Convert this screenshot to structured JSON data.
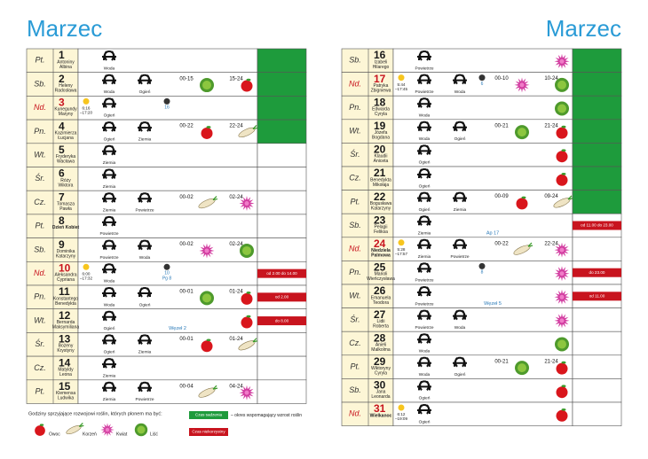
{
  "pages": [
    {
      "title": "Marzec",
      "rows": [
        {
          "dow": "Pt.",
          "day": 1,
          "names": [
            "Antoniny",
            "Albina"
          ],
          "signs": [
            "Woda"
          ],
          "cell": "#1e9b3c"
        },
        {
          "dow": "Sb.",
          "day": 2,
          "names": [
            "Heleny",
            "Radosława"
          ],
          "signs": [
            "Woda",
            "Ogień"
          ],
          "times": [
            "00-15",
            "15-24"
          ],
          "plants": [
            "lisc",
            "owoc"
          ],
          "cell": "#1e9b3c"
        },
        {
          "dow": "Nd.",
          "day": 3,
          "day_color": "#c8141e",
          "names": [
            "Kunegundy",
            "Maryny"
          ],
          "sun": [
            "6:16",
            "–17:20"
          ],
          "signs": [
            "Ogień"
          ],
          "moon": "16",
          "cell": "#1e9b3c"
        },
        {
          "dow": "Pn.",
          "day": 4,
          "names": [
            "Kazimierza",
            "Łucjana"
          ],
          "signs": [
            "Ogień",
            "Ziemia"
          ],
          "times": [
            "00-22",
            "22-24"
          ],
          "plants": [
            "owoc",
            "korzen"
          ],
          "cell": "#1e9b3c"
        },
        {
          "dow": "Wt.",
          "day": 5,
          "names": [
            "Fryderyka",
            "Wacława"
          ],
          "signs": [
            "Ziemia"
          ]
        },
        {
          "dow": "Śr.",
          "day": 6,
          "names": [
            "Róży",
            "Wiktora"
          ],
          "signs": [
            "Ziemia"
          ]
        },
        {
          "dow": "Cz.",
          "day": 7,
          "names": [
            "Tomasza",
            "Pawła"
          ],
          "signs": [
            "Ziemia",
            "Powietrze"
          ],
          "times": [
            "00-02",
            "02-24"
          ],
          "plants": [
            "korzen",
            "kwiat"
          ]
        },
        {
          "dow": "Pt.",
          "day": 8,
          "names": [
            "Dzień Kobiet"
          ],
          "bold_names": true,
          "signs": [
            "Powietrze"
          ]
        },
        {
          "dow": "Sb.",
          "day": 9,
          "names": [
            "Dominika",
            "Katarzyny"
          ],
          "signs": [
            "Powietrze",
            "Woda"
          ],
          "times": [
            "00-02",
            "02-24"
          ],
          "plants": [
            "kwiat",
            "lisc"
          ]
        },
        {
          "dow": "Nd.",
          "day": 10,
          "day_color": "#c8141e",
          "names": [
            "Aleksandra",
            "Cypriana"
          ],
          "sun": [
            "6:00",
            "–17:32"
          ],
          "signs": [
            "Woda"
          ],
          "moon": "10",
          "moon_extra": "Pg 8",
          "alert": "od 2.00 do 14.00"
        },
        {
          "dow": "Pn.",
          "day": 11,
          "names": [
            "Konstantego",
            "Benedykta"
          ],
          "signs": [
            "Woda",
            "Ogień"
          ],
          "times": [
            "00-01",
            "01-24"
          ],
          "plants": [
            "lisc",
            "owoc"
          ],
          "alert": "od 2.00"
        },
        {
          "dow": "Wt.",
          "day": 12,
          "names": [
            "Bernarda",
            "Maksymiliana"
          ],
          "signs": [
            "Ogień"
          ],
          "note": "Węzeł 2",
          "plants": [
            "owoc"
          ],
          "alert": "do 8.00"
        },
        {
          "dow": "Śr.",
          "day": 13,
          "names": [
            "Bożeny",
            "Krystyny"
          ],
          "signs": [
            "Ogień",
            "Ziemia"
          ],
          "times": [
            "00-01",
            "01-24"
          ],
          "plants": [
            "owoc",
            "korzen"
          ]
        },
        {
          "dow": "Cz.",
          "day": 14,
          "names": [
            "Matyldy",
            "Leona"
          ],
          "signs": [
            "Ziemia"
          ]
        },
        {
          "dow": "Pt.",
          "day": 15,
          "names": [
            "Klemensa",
            "Ludwika"
          ],
          "signs": [
            "Ziemia",
            "Powietrze"
          ],
          "times": [
            "00-04",
            "04-24"
          ],
          "plants": [
            "korzen",
            "kwiat"
          ]
        }
      ]
    },
    {
      "title": "Marzec",
      "rows": [
        {
          "dow": "Sb.",
          "day": 16,
          "names": [
            "Izabeli",
            "Hilarego"
          ],
          "signs": [
            "Powietrze"
          ],
          "plants": [
            "kwiat"
          ],
          "cell": "#1e9b3c"
        },
        {
          "dow": "Nd.",
          "day": 17,
          "day_color": "#c8141e",
          "names": [
            "Patryka",
            "Zbigniewa"
          ],
          "sun": [
            "5:44",
            "–17:45"
          ],
          "signs": [
            "Powietrze",
            "Woda"
          ],
          "moon": "6",
          "times": [
            "00-10",
            "10-24"
          ],
          "plants": [
            "kwiat",
            "lisc"
          ],
          "cell": "#1e9b3c"
        },
        {
          "dow": "Pn.",
          "day": 18,
          "names": [
            "Edwarda",
            "Cyryla"
          ],
          "signs": [
            "Woda"
          ],
          "plants": [
            "lisc"
          ],
          "cell": "#1e9b3c"
        },
        {
          "dow": "Wt.",
          "day": 19,
          "names": [
            "Józefa",
            "Bogdana"
          ],
          "signs": [
            "Woda",
            "Ogień"
          ],
          "times": [
            "00-21",
            "21-24"
          ],
          "plants": [
            "lisc",
            "owoc"
          ],
          "cell": "#1e9b3c"
        },
        {
          "dow": "Śr.",
          "day": 20,
          "names": [
            "Klaudii",
            "Aniceta"
          ],
          "signs": [
            "Ogień"
          ],
          "plants": [
            "owoc"
          ],
          "cell": "#1e9b3c"
        },
        {
          "dow": "Cz.",
          "day": 21,
          "names": [
            "Benedykta",
            "Mikołaja"
          ],
          "signs": [
            "Ogień"
          ],
          "plants": [
            "owoc"
          ],
          "cell": "#1e9b3c"
        },
        {
          "dow": "Pt.",
          "day": 22,
          "names": [
            "Bogusława",
            "Katarzyny"
          ],
          "signs": [
            "Ogień",
            "Ziemia"
          ],
          "times": [
            "00-09",
            "09-24"
          ],
          "plants": [
            "owoc",
            "korzen"
          ],
          "cell": "#1e9b3c"
        },
        {
          "dow": "Sb.",
          "day": 23,
          "names": [
            "Pelagii",
            "Feliksa"
          ],
          "signs": [
            "Ziemia"
          ],
          "note": "Ap 17",
          "alert": "od 11.00 do 23.00"
        },
        {
          "dow": "Nd.",
          "day": 24,
          "day_color": "#c8141e",
          "names": [
            "Niedziela",
            "Palmowa"
          ],
          "bold_names": true,
          "sun": [
            "5:28",
            "–17:57"
          ],
          "signs": [
            "Ziemia",
            "Powietrze"
          ],
          "times": [
            "00-22",
            "22-24"
          ],
          "plants": [
            "korzen",
            "kwiat"
          ]
        },
        {
          "dow": "Pn.",
          "day": 25,
          "names": [
            "Marioli",
            "Wieńczysława"
          ],
          "signs": [
            "Powietrze"
          ],
          "moon": "8",
          "plants": [
            "kwiat"
          ],
          "alert": "do 23.00"
        },
        {
          "dow": "Wt.",
          "day": 26,
          "names": [
            "Emanuela",
            "Teodora"
          ],
          "signs": [
            "Powietrze"
          ],
          "note": "Węzeł 5",
          "plants": [
            "kwiat"
          ],
          "alert": "od 11.00"
        },
        {
          "dow": "Śr.",
          "day": 27,
          "names": [
            "Lidii",
            "Roberta"
          ],
          "signs": [
            "Powietrze",
            "Woda"
          ],
          "plants": [
            "kwiat"
          ]
        },
        {
          "dow": "Cz.",
          "day": 28,
          "names": [
            "Anieli",
            "Malkolma"
          ],
          "signs": [
            "Woda"
          ],
          "plants": [
            "lisc"
          ]
        },
        {
          "dow": "Pt.",
          "day": 29,
          "names": [
            "Wiktoryny",
            "Cyryla"
          ],
          "signs": [
            "Woda",
            "Ogień"
          ],
          "times": [
            "00-21",
            "21-24"
          ],
          "plants": [
            "lisc",
            "owoc"
          ]
        },
        {
          "dow": "Sb.",
          "day": 30,
          "names": [
            "Jana",
            "Leonarda"
          ],
          "signs": [
            "Ogień"
          ],
          "plants": [
            "owoc"
          ]
        },
        {
          "dow": "Nd.",
          "day": 31,
          "day_color": "#c8141e",
          "names": [
            "Wielkanoc"
          ],
          "bold_names": true,
          "sun": [
            "6:12",
            "–19:09"
          ],
          "signs": [
            "Ogień"
          ],
          "plants": [
            "owoc"
          ]
        }
      ]
    }
  ],
  "legend": {
    "heading": "Godziny sprzyjające rozwojowi roślin, których plonem ma być:",
    "items": [
      {
        "kind": "owoc",
        "label": "Owoc"
      },
      {
        "kind": "korzen",
        "label": "Korzeń"
      },
      {
        "kind": "kwiat",
        "label": "Kwiat"
      },
      {
        "kind": "lisc",
        "label": "Liść"
      }
    ],
    "good": {
      "label": "Czas sadzenia",
      "text": "– okres wspomagający wzrost roślin",
      "color": "#1e9b3c"
    },
    "bad": {
      "label": "Czas niekorzystny",
      "color": "#c8141e"
    }
  }
}
